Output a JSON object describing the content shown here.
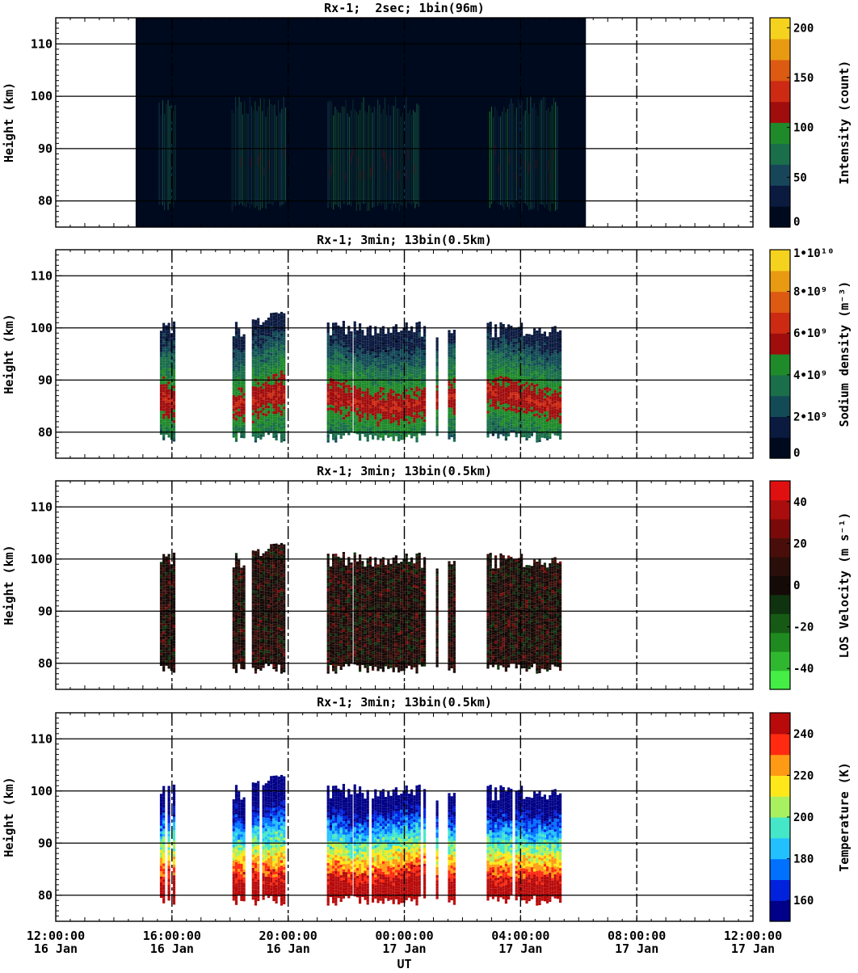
{
  "chart_data": [
    {
      "type": "heatmap",
      "title": "Rx-1;  2sec; 1bin(96m)",
      "ylabel": "Height (km)",
      "ylim": [
        75,
        115
      ],
      "yticks": [
        "80",
        "90",
        "100",
        "110"
      ],
      "colorbar": {
        "label": "Intensity (count)",
        "range": [
          0,
          210
        ],
        "ticks": [
          "0",
          "50",
          "100",
          "150",
          "200"
        ]
      },
      "colormap": "intensity",
      "time_coverage": [
        [
          "14:45",
          "06:15"
        ]
      ],
      "layer": [
        78,
        100
      ],
      "peak": 87
    },
    {
      "type": "heatmap",
      "title": "Rx-1; 3min; 13bin(0.5km)",
      "ylabel": "Height (km)",
      "ylim": [
        75,
        115
      ],
      "yticks": [
        "80",
        "90",
        "100",
        "110"
      ],
      "colorbar": {
        "label": "Sodium density (m⁻³)",
        "range": [
          0,
          10000000000.0
        ],
        "ticks": [
          "0",
          "2•10⁹",
          "4•10⁹",
          "6•10⁹",
          "8•10⁹",
          "1•10¹⁰"
        ]
      },
      "colormap": "density",
      "time_coverage": [
        [
          "15:35",
          "16:05"
        ],
        [
          "18:05",
          "18:30"
        ],
        [
          "18:45",
          "19:50"
        ],
        [
          "21:20",
          "22:10"
        ],
        [
          "22:15",
          "00:40"
        ],
        [
          "01:05",
          "01:10"
        ],
        [
          "01:30",
          "01:45"
        ],
        [
          "02:50",
          "05:20"
        ]
      ],
      "layer": [
        78,
        101
      ],
      "peak": 86
    },
    {
      "type": "heatmap",
      "title": "Rx-1; 3min; 13bin(0.5km)",
      "ylabel": "Height (km)",
      "ylim": [
        75,
        115
      ],
      "yticks": [
        "80",
        "90",
        "100",
        "110"
      ],
      "colorbar": {
        "label": "LOS Velocity (m s⁻¹)",
        "range": [
          -50,
          50
        ],
        "ticks": [
          "-40",
          "-20",
          "0",
          "20",
          "40"
        ]
      },
      "colormap": "velocity",
      "time_coverage": [
        [
          "15:35",
          "16:05"
        ],
        [
          "18:05",
          "18:30"
        ],
        [
          "18:45",
          "19:50"
        ],
        [
          "21:20",
          "22:10"
        ],
        [
          "22:15",
          "00:40"
        ],
        [
          "01:05",
          "01:10"
        ],
        [
          "01:30",
          "01:45"
        ],
        [
          "02:50",
          "05:20"
        ]
      ],
      "layer": [
        78,
        101
      ],
      "peak": 90
    },
    {
      "type": "heatmap",
      "title": "Rx-1; 3min; 13bin(0.5km)",
      "ylabel": "Height (km)",
      "ylim": [
        75,
        115
      ],
      "yticks": [
        "80",
        "90",
        "100",
        "110"
      ],
      "colorbar": {
        "label": "Temperature (K)",
        "range": [
          150,
          250
        ],
        "ticks": [
          "160",
          "180",
          "200",
          "220",
          "240"
        ]
      },
      "colormap": "temperature",
      "time_coverage": [
        [
          "15:35",
          "16:05"
        ],
        [
          "18:05",
          "18:30"
        ],
        [
          "18:45",
          "19:50"
        ],
        [
          "21:20",
          "22:10"
        ],
        [
          "22:15",
          "00:40"
        ],
        [
          "01:05",
          "01:10"
        ],
        [
          "01:30",
          "01:45"
        ],
        [
          "02:50",
          "05:20"
        ]
      ],
      "layer": [
        78,
        101
      ],
      "peak": 84
    }
  ],
  "x_axis": {
    "label": "UT",
    "xlim_hours": [
      12,
      36
    ],
    "ticks": [
      {
        "time": "12:00:00",
        "date": "16 Jan"
      },
      {
        "time": "16:00:00",
        "date": "16 Jan"
      },
      {
        "time": "20:00:00",
        "date": "16 Jan"
      },
      {
        "time": "00:00:00",
        "date": "17 Jan"
      },
      {
        "time": "04:00:00",
        "date": "17 Jan"
      },
      {
        "time": "08:00:00",
        "date": "17 Jan"
      },
      {
        "time": "12:00:00",
        "date": "17 Jan"
      }
    ]
  },
  "colors": {
    "intensity": [
      "#000a1e",
      "#0b1a3f",
      "#17465a",
      "#1a6e4a",
      "#1f8a2a",
      "#a00d0d",
      "#cc2a12",
      "#dd5a12",
      "#e89a12",
      "#f5d21e"
    ],
    "density": [
      "#000a1e",
      "#0b1a3f",
      "#124a55",
      "#1a6e4a",
      "#1f8a2a",
      "#a00d0d",
      "#cc2a12",
      "#dd5a12",
      "#e89a12",
      "#f5d21e"
    ],
    "velocity": [
      "#44ee44",
      "#2fb82f",
      "#1f8a1f",
      "#165a16",
      "#0e330e",
      "#140a08",
      "#2a0e0a",
      "#4a0e0a",
      "#7a0a0a",
      "#aa0d0d",
      "#e01010"
    ],
    "temperature": [
      "#000088",
      "#0022dd",
      "#0070ff",
      "#22c0ff",
      "#44e8c8",
      "#a8f060",
      "#ffe81a",
      "#ff9a14",
      "#ff2a10",
      "#b80a0a"
    ]
  }
}
